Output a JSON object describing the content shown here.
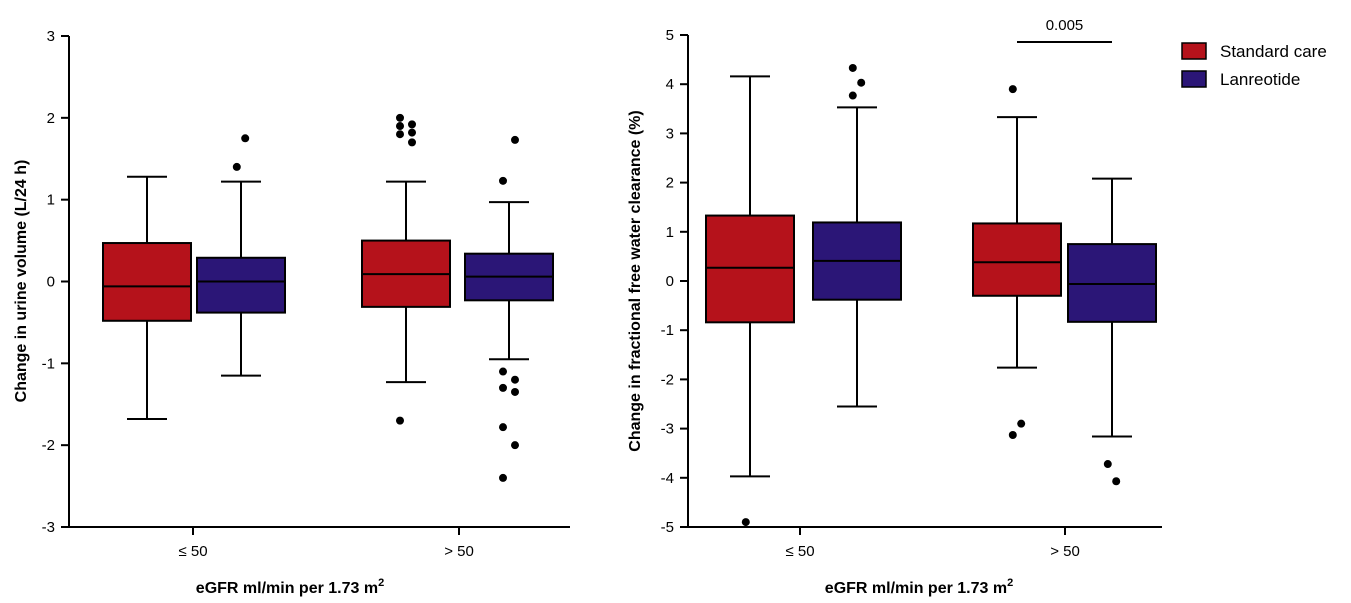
{
  "legend": {
    "items": [
      {
        "label": "Standard care",
        "color": "#b5121b"
      },
      {
        "label": "Lanreotide",
        "color": "#2b1677"
      }
    ]
  },
  "chart_data": [
    {
      "type": "box",
      "ylabel": "Change in urine volume (L/24 h)",
      "xlabel": "eGFR ml/min per 1.73 m",
      "xlabel_superscript": "2",
      "ylim": [
        -3,
        3
      ],
      "yticks": [
        "-3",
        "-2",
        "-1",
        "0",
        "1",
        "2",
        "3"
      ],
      "categories": [
        "≤ 50",
        "> 50"
      ],
      "series": [
        {
          "name": "Standard care",
          "color": "#b5121b",
          "boxes": [
            {
              "whisker_low": -1.68,
              "q1": -0.48,
              "median": -0.06,
              "q3": 0.47,
              "whisker_high": 1.28,
              "outliers": []
            },
            {
              "whisker_low": -1.23,
              "q1": -0.31,
              "median": 0.09,
              "q3": 0.5,
              "whisker_high": 1.22,
              "outliers": [
                1.8,
                1.82,
                1.9,
                1.92,
                2.0,
                1.7,
                -1.7
              ]
            }
          ]
        },
        {
          "name": "Lanreotide",
          "color": "#2b1677",
          "boxes": [
            {
              "whisker_low": -1.15,
              "q1": -0.38,
              "median": 0.0,
              "q3": 0.29,
              "whisker_high": 1.22,
              "outliers": [
                1.4,
                1.75
              ]
            },
            {
              "whisker_low": -0.95,
              "q1": -0.23,
              "median": 0.06,
              "q3": 0.34,
              "whisker_high": 0.97,
              "outliers": [
                1.23,
                1.73,
                -1.1,
                -1.2,
                -1.3,
                -1.35,
                -1.78,
                -2.0,
                -2.4
              ]
            }
          ]
        }
      ],
      "annotations": []
    },
    {
      "type": "box",
      "ylabel": "Change in fractional free water clearance (%)",
      "xlabel": "eGFR ml/min per 1.73 m",
      "xlabel_superscript": "2",
      "ylim": [
        -5,
        5
      ],
      "yticks": [
        "-5",
        "-4",
        "-3",
        "-2",
        "-1",
        "0",
        "1",
        "2",
        "3",
        "4",
        "5"
      ],
      "categories": [
        "≤ 50",
        "> 50"
      ],
      "series": [
        {
          "name": "Standard care",
          "color": "#b5121b",
          "boxes": [
            {
              "whisker_low": -3.97,
              "q1": -0.84,
              "median": 0.27,
              "q3": 1.33,
              "whisker_high": 4.16,
              "outliers": [
                -4.9
              ]
            },
            {
              "whisker_low": -1.76,
              "q1": -0.3,
              "median": 0.38,
              "q3": 1.17,
              "whisker_high": 3.33,
              "outliers": [
                3.9,
                -2.9,
                -3.13
              ]
            }
          ]
        },
        {
          "name": "Lanreotide",
          "color": "#2b1677",
          "boxes": [
            {
              "whisker_low": -2.55,
              "q1": -0.38,
              "median": 0.41,
              "q3": 1.19,
              "whisker_high": 3.53,
              "outliers": [
                3.77,
                4.03,
                4.33
              ]
            },
            {
              "whisker_low": -3.16,
              "q1": -0.83,
              "median": -0.06,
              "q3": 0.75,
              "whisker_high": 2.08,
              "outliers": [
                -3.72,
                -4.07
              ]
            }
          ]
        }
      ],
      "annotations": [
        {
          "text": "0.005",
          "category_index": 1
        }
      ]
    }
  ]
}
